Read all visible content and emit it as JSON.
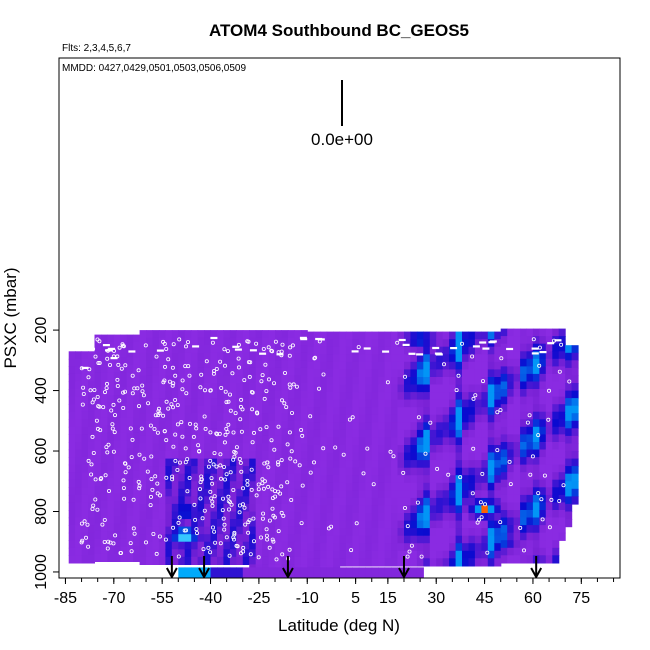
{
  "chart_data": {
    "type": "heatmap",
    "title": "ATOM4 Southbound BC_GEOS5",
    "flights_label": "Flts: 2,3,4,5,6,7",
    "dates_label": "MMDD: 0427,0429,0501,0503,0506,0509",
    "xlabel": "Latitude (deg N)",
    "ylabel": "PSXC (mbar)",
    "xlim": [
      -87,
      87
    ],
    "ylim": [
      1020,
      -700
    ],
    "x_ticks": [
      -85,
      -70,
      -55,
      -40,
      -25,
      -10,
      5,
      15,
      30,
      45,
      60,
      75
    ],
    "y_ticks": [
      200,
      400,
      600,
      800,
      1000
    ],
    "scale_label": "0.0e+00",
    "colors": {
      "background_field": "#8a2be2",
      "low": "#7a22d6",
      "mid_blue": "#0a0ad0",
      "high_blue": "#00b8ff",
      "max": "#ff2200"
    },
    "profile_arrows_lat": [
      -52,
      -42,
      -16,
      20,
      61
    ],
    "features": [
      {
        "lat": -48,
        "p": 880,
        "intensity": "max"
      },
      {
        "lat": -48,
        "p": 800,
        "intensity": "high"
      },
      {
        "lat": 45,
        "p": 790,
        "intensity": "max"
      },
      {
        "lat": 50,
        "p": 900,
        "intensity": "high"
      },
      {
        "lat": 25,
        "p": 230,
        "intensity": "high"
      }
    ]
  }
}
